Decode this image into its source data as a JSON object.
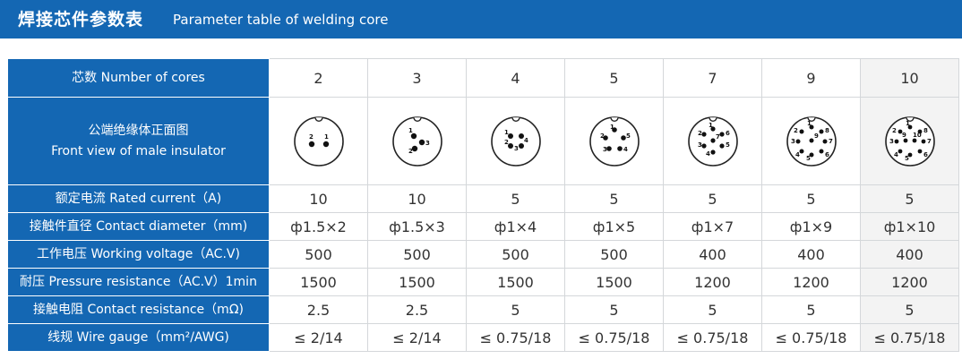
{
  "header": {
    "title_cn": "焊接芯件参数表",
    "title_en": "Parameter table of welding core"
  },
  "accent_color": "#1467b3",
  "rows": {
    "cores": {
      "label": "芯数 Number of cores",
      "values": [
        "2",
        "3",
        "4",
        "5",
        "7",
        "9",
        "10"
      ]
    },
    "front_view": {
      "label_cn": "公端绝缘体正面图",
      "label_en": "Front view of male insulator"
    },
    "rated_current": {
      "label": "额定电流 Rated current（A)",
      "values": [
        "10",
        "10",
        "5",
        "5",
        "5",
        "5",
        "5"
      ]
    },
    "contact_diameter": {
      "label": "接触件直径 Contact diameter（mm)",
      "values": [
        "ф1.5×2",
        "ф1.5×3",
        "ф1×4",
        "ф1×5",
        "ф1×7",
        "ф1×9",
        "ф1×10"
      ]
    },
    "working_voltage": {
      "label": "工作电压 Working voltage（AC.V)",
      "values": [
        "500",
        "500",
        "500",
        "500",
        "400",
        "400",
        "400"
      ]
    },
    "pressure_resistance": {
      "label": "耐压 Pressure resistance（AC.V）1min",
      "values": [
        "1500",
        "1500",
        "1500",
        "1500",
        "1200",
        "1200",
        "1200"
      ]
    },
    "contact_resistance": {
      "label": "接触电阻 Contact resistance（mΩ)",
      "values": [
        "2.5",
        "2.5",
        "5",
        "5",
        "5",
        "5",
        "5"
      ]
    },
    "wire_gauge": {
      "label": "线规 Wire gauge（mm²/AWG)",
      "values": [
        "≤ 2/14",
        "≤ 2/14",
        "≤ 0.75/18",
        "≤ 0.75/18",
        "≤ 0.75/18",
        "≤ 0.75/18",
        "≤ 0.75/18"
      ]
    }
  },
  "insulator_pin_labels": {
    "c2": [
      "2",
      "1"
    ],
    "c3": [
      "1",
      "2",
      "3"
    ],
    "c4": [
      "1",
      "2",
      "3",
      "4"
    ],
    "c5": [
      "1",
      "2",
      "3",
      "4",
      "5"
    ],
    "c7": [
      "1",
      "2",
      "3",
      "4",
      "5",
      "6",
      "7"
    ],
    "c9": [
      "1",
      "2",
      "3",
      "4",
      "5",
      "6",
      "7",
      "8",
      "9"
    ],
    "c10": [
      "1",
      "2",
      "3",
      "4",
      "5",
      "6",
      "7",
      "8",
      "9",
      "10"
    ]
  }
}
